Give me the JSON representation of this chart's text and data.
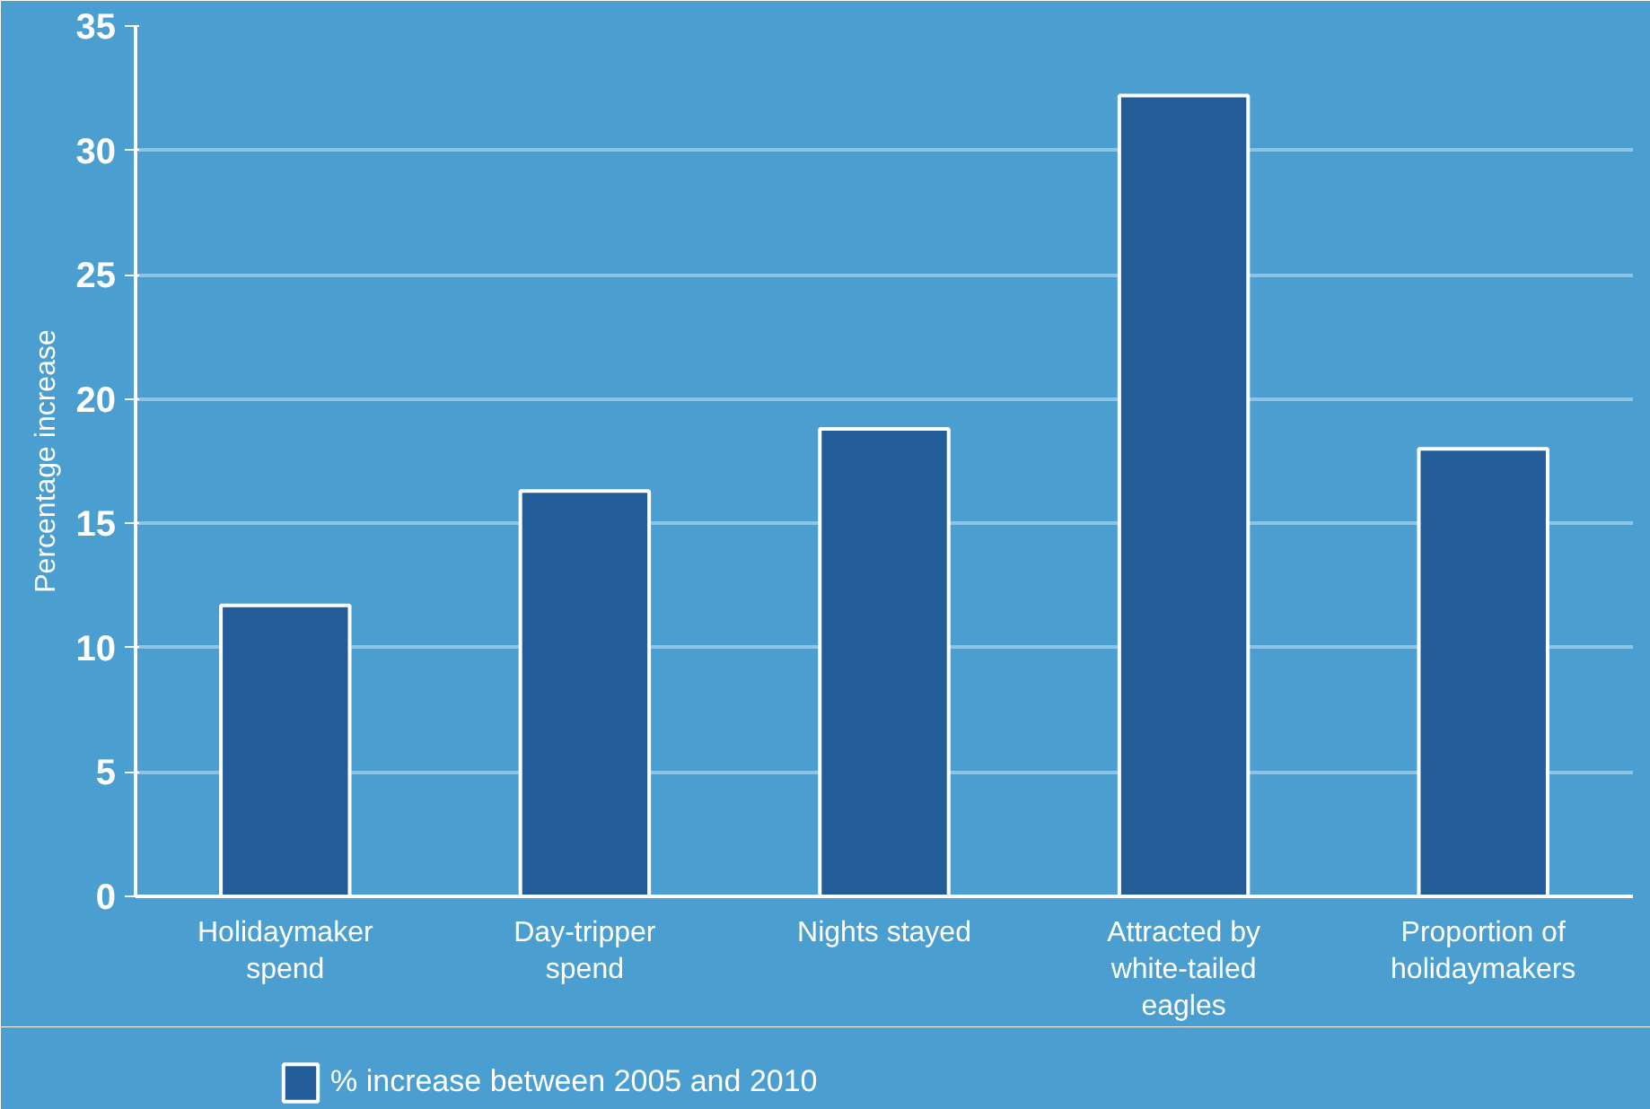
{
  "chart_data": {
    "type": "bar",
    "ylabel": "Percentage increase",
    "categories": [
      "Holidaymaker\nspend",
      "Day-tripper\nspend",
      "Nights stayed",
      "Attracted by\nwhite-tailed\neagles",
      "Proportion of\nholidaymakers"
    ],
    "series": [
      {
        "name": "% increase between 2005 and 2010",
        "color": "#235d99",
        "values": [
          11.7,
          16.3,
          18.8,
          32.2,
          18.0
        ]
      }
    ],
    "ylim": [
      0,
      35
    ],
    "yticks": [
      0,
      5,
      10,
      15,
      20,
      25,
      30,
      35
    ],
    "grid": "y",
    "legend": "bottom left"
  }
}
